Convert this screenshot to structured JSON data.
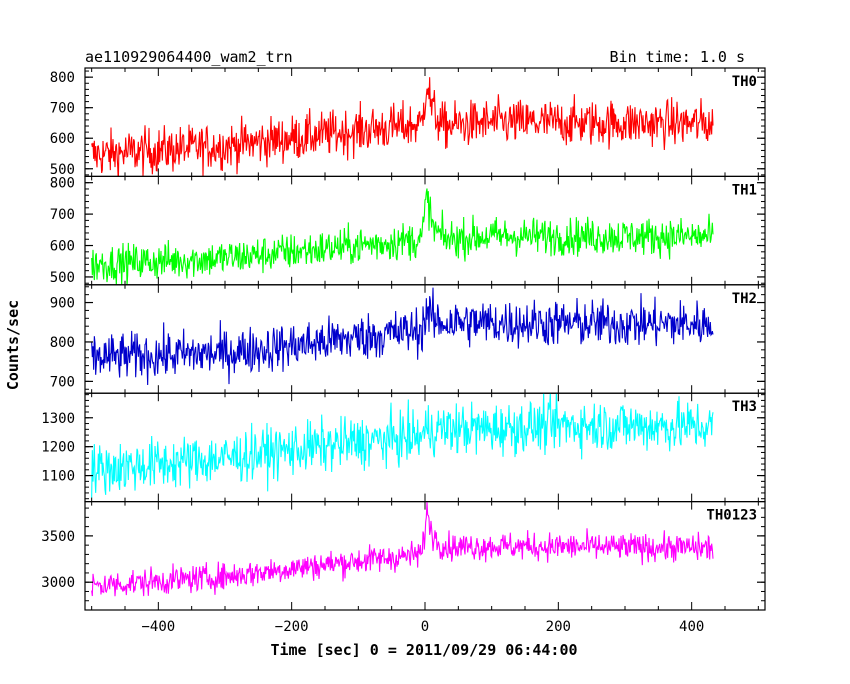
{
  "header": {
    "title": "ae110929064400_wam2_trn",
    "bin_time": "Bin time: 1.0 s"
  },
  "chart_data": {
    "type": "line",
    "title": "ae110929064400_wam2_trn",
    "subtitle": "Bin time: 1.0 s",
    "xlabel": "Time [sec] 0 = 2011/09/29 06:44:00",
    "ylabel": "Counts/sec",
    "xlim": [
      -510,
      510
    ],
    "xticks": [
      -400,
      -200,
      0,
      200,
      400
    ],
    "x_start": -500,
    "x_end": 432,
    "x_step": 1,
    "grid": false,
    "panels": [
      {
        "name": "TH0",
        "color": "#ff0000",
        "ylim": [
          475,
          830
        ],
        "yticks": [
          500,
          600,
          700,
          800
        ],
        "profile": [
          [
            -500,
            545
          ],
          [
            -300,
            575
          ],
          [
            -200,
            600
          ],
          [
            -100,
            625
          ],
          [
            -5,
            645
          ],
          [
            3,
            790
          ],
          [
            10,
            700
          ],
          [
            25,
            640
          ],
          [
            100,
            652
          ],
          [
            430,
            648
          ]
        ],
        "noise": 38
      },
      {
        "name": "TH1",
        "color": "#00ff00",
        "ylim": [
          475,
          820
        ],
        "yticks": [
          500,
          600,
          700,
          800
        ],
        "profile": [
          [
            -500,
            540
          ],
          [
            -300,
            560
          ],
          [
            -200,
            580
          ],
          [
            -100,
            600
          ],
          [
            -5,
            620
          ],
          [
            3,
            760
          ],
          [
            12,
            655
          ],
          [
            30,
            620
          ],
          [
            100,
            630
          ],
          [
            430,
            628
          ]
        ],
        "noise": 30
      },
      {
        "name": "TH2",
        "color": "#0000cc",
        "ylim": [
          670,
          945
        ],
        "yticks": [
          700,
          800,
          900
        ],
        "profile": [
          [
            -500,
            760
          ],
          [
            -300,
            772
          ],
          [
            -200,
            790
          ],
          [
            -100,
            812
          ],
          [
            -5,
            830
          ],
          [
            3,
            880
          ],
          [
            15,
            850
          ],
          [
            100,
            848
          ],
          [
            430,
            845
          ]
        ],
        "noise": 30
      },
      {
        "name": "TH3",
        "color": "#00ffff",
        "ylim": [
          1010,
          1385
        ],
        "yticks": [
          1100,
          1200,
          1300
        ],
        "profile": [
          [
            -500,
            1120
          ],
          [
            -300,
            1160
          ],
          [
            -200,
            1190
          ],
          [
            -100,
            1215
          ],
          [
            -5,
            1235
          ],
          [
            3,
            1260
          ],
          [
            100,
            1262
          ],
          [
            200,
            1275
          ],
          [
            430,
            1270
          ]
        ],
        "noise": 45
      },
      {
        "name": "TH0123",
        "color": "#ff00ff",
        "ylim": [
          2700,
          3870
        ],
        "yticks": [
          3000,
          3500
        ],
        "profile": [
          [
            -500,
            2960
          ],
          [
            -300,
            3060
          ],
          [
            -200,
            3150
          ],
          [
            -100,
            3230
          ],
          [
            -5,
            3300
          ],
          [
            3,
            3750
          ],
          [
            12,
            3500
          ],
          [
            30,
            3380
          ],
          [
            100,
            3390
          ],
          [
            430,
            3370
          ]
        ],
        "noise": 75
      }
    ]
  }
}
